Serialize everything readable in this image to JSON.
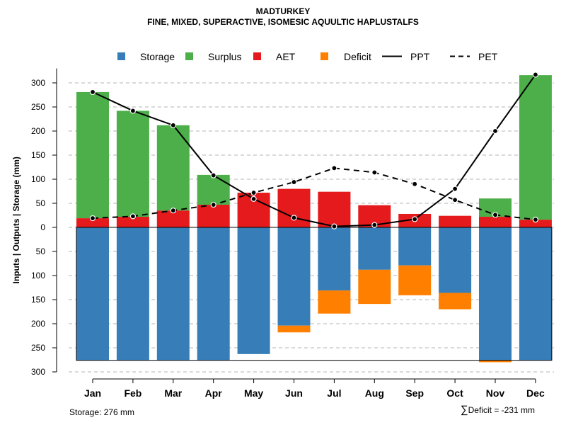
{
  "title": "MADTURKEY",
  "subtitle": "FINE, MIXED, SUPERACTIVE, ISOMESIC AQUULTIC HAPLUSTALFS",
  "footer": {
    "storage": "Storage: 276 mm",
    "deficit_symbol": "∑",
    "deficit": "Deficit = -231 mm"
  },
  "colors": {
    "storage": "#377eb8",
    "surplus": "#4daf4a",
    "aet": "#e41a1c",
    "deficit": "#ff7f00"
  },
  "chart_data": {
    "type": "bar",
    "title": "MADTURKEY",
    "subtitle": "FINE, MIXED, SUPERACTIVE, ISOMESIC AQUULTIC HAPLUSTALFS",
    "ylabel": "Inputs | Outputs | Storage    (mm)",
    "xlabel": "",
    "ylim": [
      -300,
      330
    ],
    "yticks": [
      300,
      250,
      200,
      150,
      100,
      50,
      0,
      -50,
      -100,
      -150,
      -200,
      -250,
      -300
    ],
    "ytick_labels": [
      "300",
      "250",
      "200",
      "150",
      "100",
      "50",
      "0",
      "50",
      "100",
      "150",
      "200",
      "250",
      "300"
    ],
    "grid": true,
    "legend_position": "top",
    "legend": [
      {
        "name": "Storage",
        "kind": "box",
        "color_key": "storage"
      },
      {
        "name": "Surplus",
        "kind": "box",
        "color_key": "surplus"
      },
      {
        "name": "AET",
        "kind": "box",
        "color_key": "aet"
      },
      {
        "name": "Deficit",
        "kind": "box",
        "color_key": "deficit"
      },
      {
        "name": "PPT",
        "kind": "solid"
      },
      {
        "name": "PET",
        "kind": "dashed"
      }
    ],
    "categories": [
      "Jan",
      "Feb",
      "Mar",
      "Apr",
      "May",
      "Jun",
      "Jul",
      "Aug",
      "Sep",
      "Oct",
      "Nov",
      "Dec"
    ],
    "series": [
      {
        "name": "AET",
        "values": [
          19,
          22,
          35,
          47,
          72,
          80,
          74,
          46,
          28,
          24,
          22,
          16
        ]
      },
      {
        "name": "Surplus",
        "values": [
          262,
          220,
          177,
          62,
          0,
          0,
          0,
          0,
          0,
          0,
          38,
          300
        ]
      },
      {
        "name": "Storage",
        "values": [
          276,
          276,
          276,
          276,
          263,
          204,
          131,
          88,
          79,
          136,
          276,
          276
        ]
      },
      {
        "name": "Deficit",
        "values": [
          0,
          0,
          0,
          0,
          0,
          14,
          48,
          71,
          62,
          34,
          4,
          0
        ]
      },
      {
        "name": "PPT",
        "values": [
          281,
          242,
          212,
          108,
          59,
          20,
          2,
          5,
          17,
          80,
          200,
          317
        ]
      },
      {
        "name": "PET",
        "values": [
          19,
          23,
          35,
          47,
          72,
          94,
          123,
          114,
          90,
          57,
          26,
          16
        ]
      }
    ],
    "storage_capacity": 276
  }
}
